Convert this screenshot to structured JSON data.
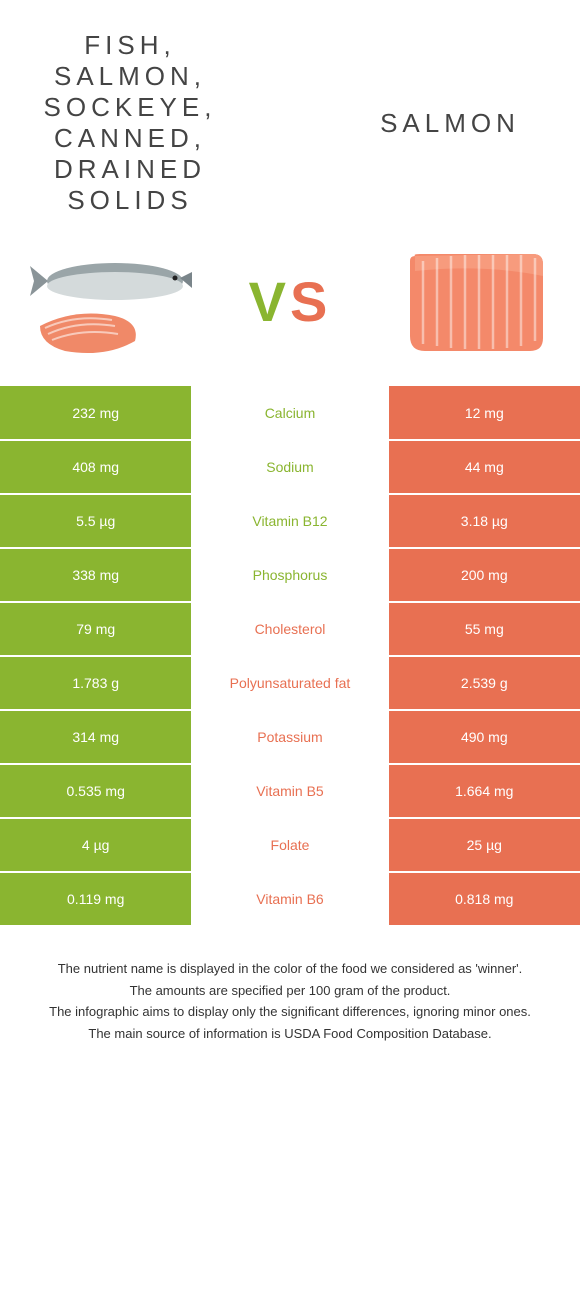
{
  "header": {
    "title_left": "FISH, SALMON, SOCKEYE, CANNED, DRAINED SOLIDS",
    "title_right": "SALMON",
    "vs_v": "V",
    "vs_s": "S"
  },
  "colors": {
    "left": "#8ab530",
    "right": "#e87052",
    "left_text": "#8ab530",
    "right_text": "#e87052"
  },
  "rows": [
    {
      "left": "232 mg",
      "name": "Calcium",
      "right": "12 mg",
      "winner": "left"
    },
    {
      "left": "408 mg",
      "name": "Sodium",
      "right": "44 mg",
      "winner": "left"
    },
    {
      "left": "5.5 µg",
      "name": "Vitamin B12",
      "right": "3.18 µg",
      "winner": "left"
    },
    {
      "left": "338 mg",
      "name": "Phosphorus",
      "right": "200 mg",
      "winner": "left"
    },
    {
      "left": "79 mg",
      "name": "Cholesterol",
      "right": "55 mg",
      "winner": "right"
    },
    {
      "left": "1.783 g",
      "name": "Polyunsaturated fat",
      "right": "2.539 g",
      "winner": "right"
    },
    {
      "left": "314 mg",
      "name": "Potassium",
      "right": "490 mg",
      "winner": "right"
    },
    {
      "left": "0.535 mg",
      "name": "Vitamin B5",
      "right": "1.664 mg",
      "winner": "right"
    },
    {
      "left": "4 µg",
      "name": "Folate",
      "right": "25 µg",
      "winner": "right"
    },
    {
      "left": "0.119 mg",
      "name": "Vitamin B6",
      "right": "0.818 mg",
      "winner": "right"
    }
  ],
  "footer": {
    "line1": "The nutrient name is displayed in the color of the food we considered as 'winner'.",
    "line2": "The amounts are specified per 100 gram of the product.",
    "line3": "The infographic aims to display only the significant differences, ignoring minor ones.",
    "line4": "The main source of information is USDA Food Composition Database."
  }
}
